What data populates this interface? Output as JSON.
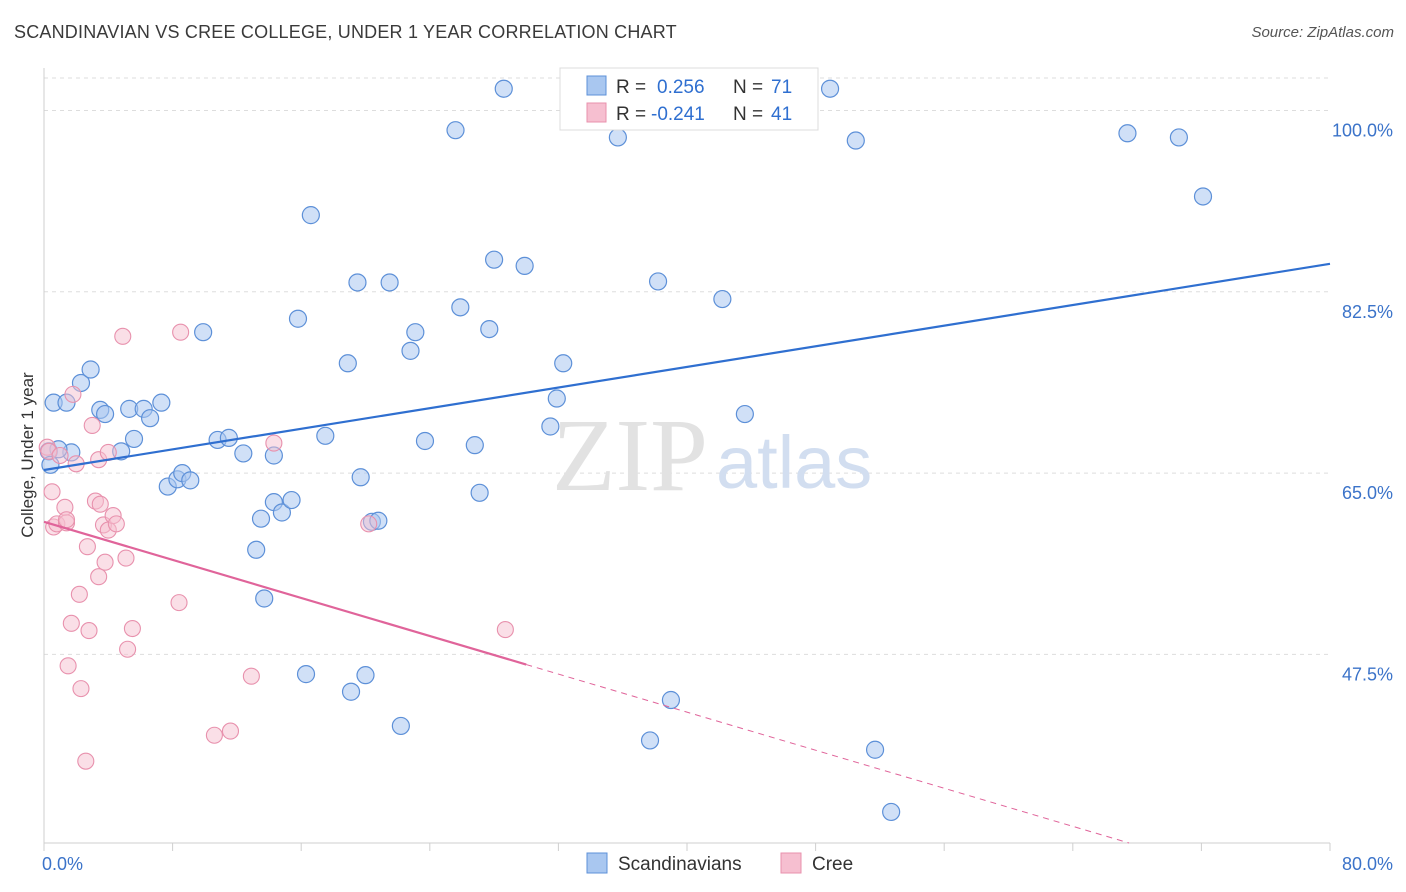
{
  "title": "SCANDINAVIAN VS CREE COLLEGE, UNDER 1 YEAR CORRELATION CHART",
  "source": "Source: ZipAtlas.com",
  "watermark": {
    "zip": "ZIP",
    "atlas": "atlas"
  },
  "colors": {
    "blue_fill": "#a9c7f0",
    "blue_stroke": "#5d90d8",
    "blue_line": "#2f6fd0",
    "pink_fill": "#f6bfd0",
    "pink_stroke": "#e891ad",
    "pink_line": "#e0649a",
    "grid": "#dddddd",
    "tick_text": "#3b73c9"
  },
  "legend": {
    "rows": [
      {
        "r_label": "R =",
        "r_value": "0.256",
        "n_label": "N =",
        "n_value": "71",
        "series": "Scandinavians"
      },
      {
        "r_label": "R =",
        "r_value": "-0.241",
        "n_label": "N =",
        "n_value": "41",
        "series": "Cree"
      }
    ]
  },
  "chart_data": {
    "type": "scatter",
    "title": "SCANDINAVIAN VS CREE COLLEGE, UNDER 1 YEAR CORRELATION CHART",
    "xlabel": "",
    "ylabel": "College, Under 1 year",
    "xlim": [
      0,
      80
    ],
    "ylim": [
      29.3,
      104.1
    ],
    "x_tick_labels": [
      "0.0%",
      "80.0%"
    ],
    "y_ticks": [
      100.0,
      82.5,
      65.0,
      47.5
    ],
    "y_tick_labels": [
      "100.0%",
      "82.5%",
      "65.0%",
      "47.5%"
    ],
    "grid": true,
    "legend_position": "bottom",
    "series": [
      {
        "name": "Scandinavians",
        "color": "#a9c7f0",
        "trend": {
          "x0": 0.0,
          "y0": 65.3,
          "x1": 80.0,
          "y1": 85.2,
          "dashed_from": null
        },
        "points": [
          [
            0.6,
            71.8
          ],
          [
            1.4,
            71.8
          ],
          [
            1.7,
            67.0
          ],
          [
            2.3,
            73.7
          ],
          [
            2.9,
            75.0
          ],
          [
            3.5,
            71.1
          ],
          [
            3.8,
            70.7
          ],
          [
            4.8,
            67.1
          ],
          [
            5.3,
            71.2
          ],
          [
            5.6,
            68.3
          ],
          [
            6.2,
            71.2
          ],
          [
            6.6,
            70.3
          ],
          [
            7.3,
            71.8
          ],
          [
            7.7,
            63.7
          ],
          [
            8.3,
            64.4
          ],
          [
            8.6,
            65.0
          ],
          [
            9.1,
            64.3
          ],
          [
            9.9,
            78.6
          ],
          [
            10.8,
            68.2
          ],
          [
            11.5,
            68.4
          ],
          [
            12.4,
            66.9
          ],
          [
            13.2,
            57.6
          ],
          [
            13.5,
            60.6
          ],
          [
            13.7,
            52.9
          ],
          [
            14.3,
            66.7
          ],
          [
            14.3,
            62.2
          ],
          [
            14.8,
            61.2
          ],
          [
            15.4,
            62.4
          ],
          [
            15.8,
            79.9
          ],
          [
            16.3,
            45.6
          ],
          [
            16.6,
            89.9
          ],
          [
            17.5,
            68.6
          ],
          [
            18.9,
            75.6
          ],
          [
            19.1,
            43.9
          ],
          [
            19.5,
            83.4
          ],
          [
            19.7,
            64.6
          ],
          [
            20.0,
            45.5
          ],
          [
            20.4,
            60.3
          ],
          [
            20.8,
            60.4
          ],
          [
            21.5,
            83.4
          ],
          [
            22.2,
            40.6
          ],
          [
            22.8,
            76.8
          ],
          [
            23.1,
            78.6
          ],
          [
            23.7,
            68.1
          ],
          [
            25.6,
            98.1
          ],
          [
            25.9,
            81.0
          ],
          [
            26.8,
            67.7
          ],
          [
            27.1,
            63.1
          ],
          [
            27.7,
            78.9
          ],
          [
            28.0,
            85.6
          ],
          [
            28.6,
            102.1
          ],
          [
            29.9,
            85.0
          ],
          [
            31.5,
            69.5
          ],
          [
            31.9,
            72.2
          ],
          [
            32.3,
            75.6
          ],
          [
            35.7,
            97.4
          ],
          [
            37.7,
            39.2
          ],
          [
            38.2,
            83.5
          ],
          [
            39.0,
            43.1
          ],
          [
            42.2,
            81.8
          ],
          [
            43.6,
            70.7
          ],
          [
            48.9,
            102.1
          ],
          [
            50.5,
            97.1
          ],
          [
            51.7,
            38.3
          ],
          [
            52.7,
            32.3
          ],
          [
            67.4,
            97.8
          ],
          [
            70.6,
            97.4
          ],
          [
            72.1,
            91.7
          ],
          [
            0.3,
            67.1
          ],
          [
            0.9,
            67.3
          ],
          [
            0.4,
            65.8
          ]
        ]
      },
      {
        "name": "Cree",
        "color": "#f6bfd0",
        "trend": {
          "x0": 0.0,
          "y0": 60.3,
          "x1": 67.5,
          "y1": 29.3,
          "dashed_from": 30.0
        },
        "points": [
          [
            0.2,
            67.5
          ],
          [
            0.3,
            67.1
          ],
          [
            0.5,
            63.2
          ],
          [
            0.6,
            59.8
          ],
          [
            0.8,
            60.1
          ],
          [
            1.0,
            66.7
          ],
          [
            1.3,
            61.7
          ],
          [
            1.4,
            60.2
          ],
          [
            1.4,
            60.5
          ],
          [
            1.5,
            46.4
          ],
          [
            1.7,
            50.5
          ],
          [
            1.8,
            72.6
          ],
          [
            2.0,
            65.9
          ],
          [
            2.2,
            53.3
          ],
          [
            2.3,
            44.2
          ],
          [
            2.6,
            37.2
          ],
          [
            2.7,
            57.9
          ],
          [
            2.8,
            49.8
          ],
          [
            3.0,
            69.6
          ],
          [
            3.2,
            62.3
          ],
          [
            3.4,
            66.3
          ],
          [
            3.4,
            55.0
          ],
          [
            3.5,
            62.0
          ],
          [
            3.7,
            60.0
          ],
          [
            3.8,
            56.4
          ],
          [
            4.0,
            67.0
          ],
          [
            4.0,
            59.5
          ],
          [
            4.3,
            60.9
          ],
          [
            4.5,
            60.1
          ],
          [
            4.9,
            78.2
          ],
          [
            5.1,
            56.8
          ],
          [
            5.2,
            48.0
          ],
          [
            5.5,
            50.0
          ],
          [
            8.4,
            52.5
          ],
          [
            8.5,
            78.6
          ],
          [
            10.6,
            39.7
          ],
          [
            11.6,
            40.1
          ],
          [
            12.9,
            45.4
          ],
          [
            14.3,
            67.9
          ],
          [
            20.2,
            60.1
          ],
          [
            28.7,
            49.9
          ]
        ]
      }
    ]
  }
}
